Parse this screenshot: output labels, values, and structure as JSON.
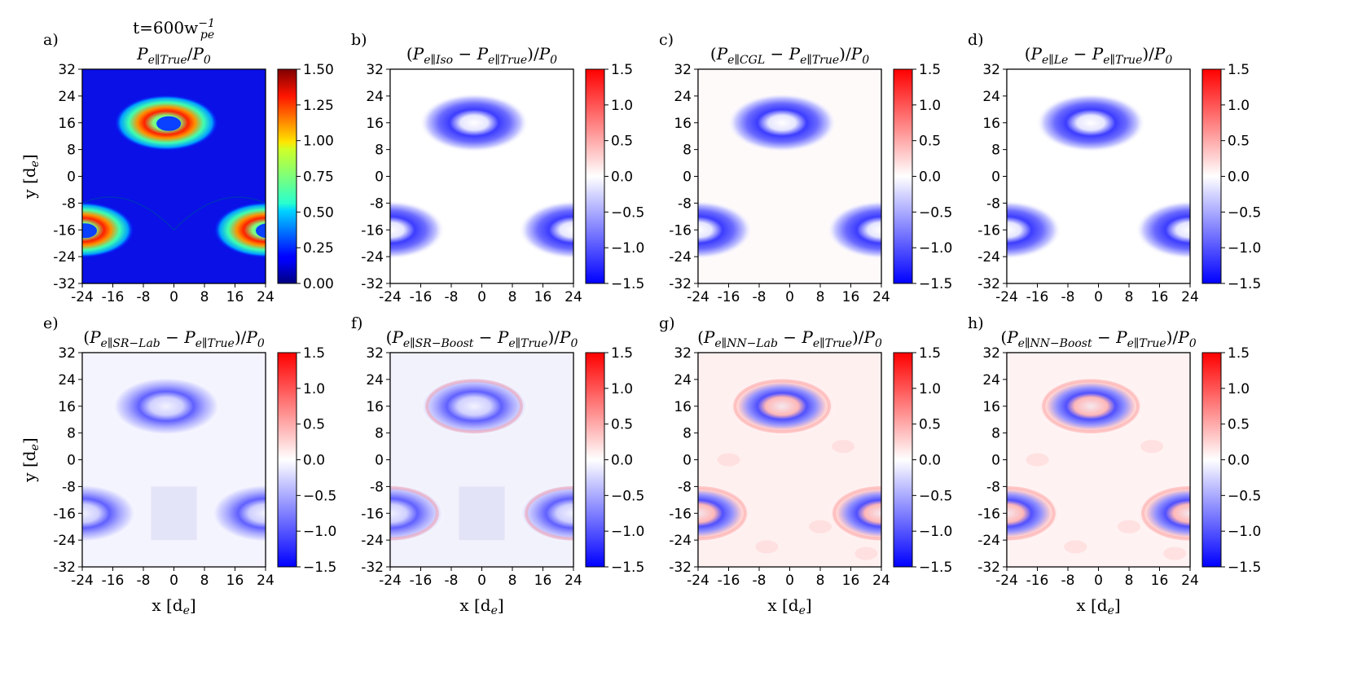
{
  "figure": {
    "time_label": "t=600w",
    "time_sup": "−1",
    "time_sub": "pe",
    "xlabel": "x [d",
    "xlabel_sub": "e",
    "xlabel_end": "]",
    "ylabel": "y [d",
    "ylabel_sub": "e",
    "ylabel_end": "]"
  },
  "chart_data": [
    {
      "id": "a",
      "letter": "a)",
      "type": "heatmap",
      "title_parts": [
        [
          "P",
          "i"
        ],
        [
          "e∥True",
          "sub"
        ],
        [
          "/",
          "n"
        ],
        [
          "P",
          "i"
        ],
        [
          "0",
          "sub"
        ]
      ],
      "colormap": "jet",
      "clim": [
        0,
        1.5
      ],
      "cbar_ticks": [
        "0.00",
        "0.25",
        "0.50",
        "0.75",
        "1.00",
        "1.25",
        "1.50"
      ],
      "x_ticks": [
        "-24",
        "-16",
        "-8",
        "0",
        "8",
        "16",
        "24"
      ],
      "y_ticks": [
        "-32",
        "-24",
        "-16",
        "-8",
        "0",
        "8",
        "16",
        "24",
        "32"
      ],
      "xlim": [
        -24,
        24
      ],
      "ylim": [
        -32,
        32
      ],
      "features": "ring-shaped pressure peaks (~1.5) at islands centered near (-2,16), (±24,-16); background ~0.1"
    },
    {
      "id": "b",
      "letter": "b)",
      "type": "heatmap",
      "title_parts": [
        [
          "(",
          "n"
        ],
        [
          "P",
          "i"
        ],
        [
          "e∥Iso",
          "sub"
        ],
        [
          " − ",
          "n"
        ],
        [
          "P",
          "i"
        ],
        [
          "e∥True",
          "sub"
        ],
        [
          ")/",
          "n"
        ],
        [
          "P",
          "i"
        ],
        [
          "0",
          "sub"
        ]
      ],
      "colormap": "bwr",
      "clim": [
        -1.5,
        1.5
      ],
      "cbar_ticks": [
        "−1.5",
        "−1.0",
        "−0.5",
        "0.0",
        "0.5",
        "1.0",
        "1.5"
      ],
      "x_ticks": [
        "-24",
        "-16",
        "-8",
        "0",
        "8",
        "16",
        "24"
      ],
      "y_ticks": [
        "-32",
        "-24",
        "-16",
        "-8",
        "0",
        "8",
        "16",
        "24",
        "32"
      ],
      "xlim": [
        -24,
        24
      ],
      "ylim": [
        -32,
        32
      ]
    },
    {
      "id": "c",
      "letter": "c)",
      "type": "heatmap",
      "title_parts": [
        [
          "(",
          "n"
        ],
        [
          "P",
          "i"
        ],
        [
          "e∥CGL",
          "sub"
        ],
        [
          " − ",
          "n"
        ],
        [
          "P",
          "i"
        ],
        [
          "e∥True",
          "sub"
        ],
        [
          ")/",
          "n"
        ],
        [
          "P",
          "i"
        ],
        [
          "0",
          "sub"
        ]
      ],
      "colormap": "bwr",
      "clim": [
        -1.5,
        1.5
      ],
      "cbar_ticks": [
        "−1.5",
        "−1.0",
        "−0.5",
        "0.0",
        "0.5",
        "1.0",
        "1.5"
      ],
      "x_ticks": [
        "-24",
        "-16",
        "-8",
        "0",
        "8",
        "16",
        "24"
      ],
      "y_ticks": [
        "-32",
        "-24",
        "-16",
        "-8",
        "0",
        "8",
        "16",
        "24",
        "32"
      ],
      "xlim": [
        -24,
        24
      ],
      "ylim": [
        -32,
        32
      ]
    },
    {
      "id": "d",
      "letter": "d)",
      "type": "heatmap",
      "title_parts": [
        [
          "(",
          "n"
        ],
        [
          "P",
          "i"
        ],
        [
          "e∥Le",
          "sub"
        ],
        [
          " − ",
          "n"
        ],
        [
          "P",
          "i"
        ],
        [
          "e∥True",
          "sub"
        ],
        [
          ")/",
          "n"
        ],
        [
          "P",
          "i"
        ],
        [
          "0",
          "sub"
        ]
      ],
      "colormap": "bwr",
      "clim": [
        -1.5,
        1.5
      ],
      "cbar_ticks": [
        "−1.5",
        "−1.0",
        "−0.5",
        "0.0",
        "0.5",
        "1.0",
        "1.5"
      ],
      "x_ticks": [
        "-24",
        "-16",
        "-8",
        "0",
        "8",
        "16",
        "24"
      ],
      "y_ticks": [
        "-32",
        "-24",
        "-16",
        "-8",
        "0",
        "8",
        "16",
        "24",
        "32"
      ],
      "xlim": [
        -24,
        24
      ],
      "ylim": [
        -32,
        32
      ]
    },
    {
      "id": "e",
      "letter": "e)",
      "type": "heatmap",
      "title_parts": [
        [
          "(",
          "n"
        ],
        [
          "P",
          "i"
        ],
        [
          "e∥SR−Lab",
          "sub"
        ],
        [
          " − ",
          "n"
        ],
        [
          "P",
          "i"
        ],
        [
          "e∥True",
          "sub"
        ],
        [
          ")/",
          "n"
        ],
        [
          "P",
          "i"
        ],
        [
          "0",
          "sub"
        ]
      ],
      "colormap": "bwr",
      "clim": [
        -1.5,
        1.5
      ],
      "cbar_ticks": [
        "−1.5",
        "−1.0",
        "−0.5",
        "0.0",
        "0.5",
        "1.0",
        "1.5"
      ],
      "x_ticks": [
        "-24",
        "-16",
        "-8",
        "0",
        "8",
        "16",
        "24"
      ],
      "y_ticks": [
        "-32",
        "-24",
        "-16",
        "-8",
        "0",
        "8",
        "16",
        "24",
        "32"
      ],
      "xlim": [
        -24,
        24
      ],
      "ylim": [
        -32,
        32
      ]
    },
    {
      "id": "f",
      "letter": "f)",
      "type": "heatmap",
      "title_parts": [
        [
          "(",
          "n"
        ],
        [
          "P",
          "i"
        ],
        [
          "e∥SR−Boost",
          "sub"
        ],
        [
          " − ",
          "n"
        ],
        [
          "P",
          "i"
        ],
        [
          "e∥True",
          "sub"
        ],
        [
          ")/",
          "n"
        ],
        [
          "P",
          "i"
        ],
        [
          "0",
          "sub"
        ]
      ],
      "colormap": "bwr",
      "clim": [
        -1.5,
        1.5
      ],
      "cbar_ticks": [
        "−1.5",
        "−1.0",
        "−0.5",
        "0.0",
        "0.5",
        "1.0",
        "1.5"
      ],
      "x_ticks": [
        "-24",
        "-16",
        "-8",
        "0",
        "8",
        "16",
        "24"
      ],
      "y_ticks": [
        "-32",
        "-24",
        "-16",
        "-8",
        "0",
        "8",
        "16",
        "24",
        "32"
      ],
      "xlim": [
        -24,
        24
      ],
      "ylim": [
        -32,
        32
      ]
    },
    {
      "id": "g",
      "letter": "g)",
      "type": "heatmap",
      "title_parts": [
        [
          "(",
          "n"
        ],
        [
          "P",
          "i"
        ],
        [
          "e∥NN−Lab",
          "sub"
        ],
        [
          " − ",
          "n"
        ],
        [
          "P",
          "i"
        ],
        [
          "e∥True",
          "sub"
        ],
        [
          ")/",
          "n"
        ],
        [
          "P",
          "i"
        ],
        [
          "0",
          "sub"
        ]
      ],
      "colormap": "bwr",
      "clim": [
        -1.5,
        1.5
      ],
      "cbar_ticks": [
        "−1.5",
        "−1.0",
        "−0.5",
        "0.0",
        "0.5",
        "1.0",
        "1.5"
      ],
      "x_ticks": [
        "-24",
        "-16",
        "-8",
        "0",
        "8",
        "16",
        "24"
      ],
      "y_ticks": [
        "-32",
        "-24",
        "-16",
        "-8",
        "0",
        "8",
        "16",
        "24",
        "32"
      ],
      "xlim": [
        -24,
        24
      ],
      "ylim": [
        -32,
        32
      ]
    },
    {
      "id": "h",
      "letter": "h)",
      "type": "heatmap",
      "title_parts": [
        [
          "(",
          "n"
        ],
        [
          "P",
          "i"
        ],
        [
          "e∥NN−Boost",
          "sub"
        ],
        [
          " − ",
          "n"
        ],
        [
          "P",
          "i"
        ],
        [
          "e∥True",
          "sub"
        ],
        [
          ")/",
          "n"
        ],
        [
          "P",
          "i"
        ],
        [
          "0",
          "sub"
        ]
      ],
      "colormap": "bwr",
      "clim": [
        -1.5,
        1.5
      ],
      "cbar_ticks": [
        "−1.5",
        "−1.0",
        "−0.5",
        "0.0",
        "0.5",
        "1.0",
        "1.5"
      ],
      "x_ticks": [
        "-24",
        "-16",
        "-8",
        "0",
        "8",
        "16",
        "24"
      ],
      "y_ticks": [
        "-32",
        "-24",
        "-16",
        "-8",
        "0",
        "8",
        "16",
        "24",
        "32"
      ],
      "xlim": [
        -24,
        24
      ],
      "ylim": [
        -32,
        32
      ]
    }
  ]
}
